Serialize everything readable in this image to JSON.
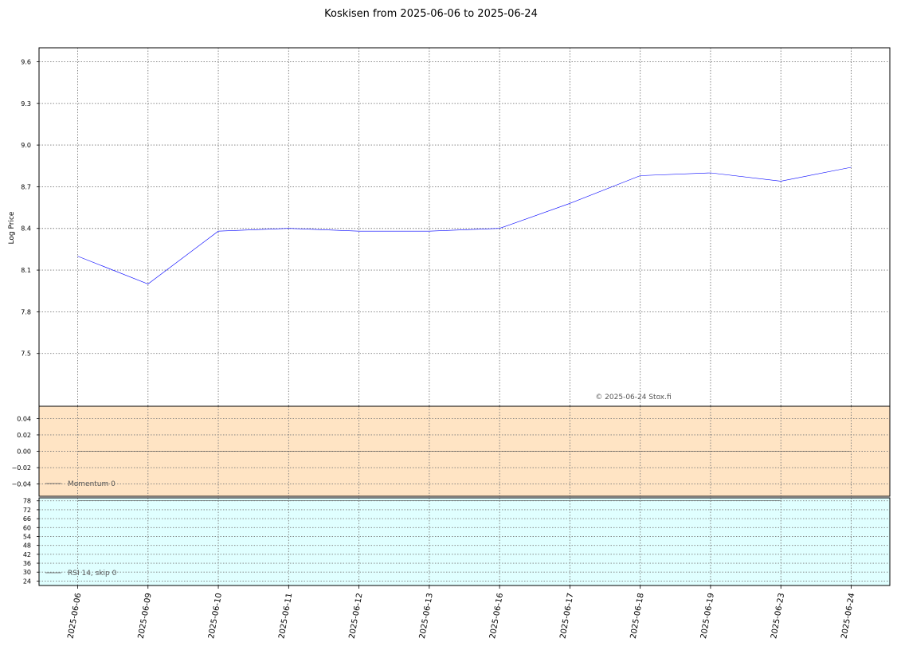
{
  "chart_data": {
    "type": "line",
    "title": "Koskisen from 2025-06-06 to 2025-06-24",
    "x": [
      "2025-06-06",
      "2025-06-09",
      "2025-06-10",
      "2025-06-11",
      "2025-06-12",
      "2025-06-13",
      "2025-06-16",
      "2025-06-17",
      "2025-06-18",
      "2025-06-19",
      "2025-06-23",
      "2025-06-24"
    ],
    "copyright": "© 2025-06-24 Stox.fi",
    "grid": true,
    "panels": [
      {
        "id": "price",
        "ylabel": "Log Price",
        "ylim": [
          7.12,
          9.7
        ],
        "yticks": [
          7.5,
          7.8,
          8.1,
          8.4,
          8.7,
          9.0,
          9.3,
          9.6
        ],
        "ytick_labels": [
          "7.5",
          "7.8",
          "8.1",
          "8.4",
          "8.7",
          "9.0",
          "9.3",
          "9.6"
        ],
        "background": "#ffffff",
        "series": [
          {
            "color": "#0000ff",
            "values": [
              8.2,
              8.0,
              8.38,
              8.4,
              8.38,
              8.38,
              8.4,
              8.58,
              8.78,
              8.8,
              8.74,
              8.84
            ]
          }
        ]
      },
      {
        "id": "momentum",
        "ylim": [
          -0.055,
          0.055
        ],
        "yticks": [
          -0.04,
          -0.02,
          0.0,
          0.02,
          0.04
        ],
        "ytick_labels": [
          "−0.04",
          "−0.02",
          "0.00",
          "0.02",
          "0.04"
        ],
        "background": "#ffe4c4",
        "legend": "Momentum 0",
        "legend_position": "lower-left",
        "series": [
          {
            "color": "#444444",
            "values": [
              0,
              0,
              0,
              0,
              0,
              0,
              0,
              0,
              0,
              0,
              0,
              0
            ]
          }
        ]
      },
      {
        "id": "rsi",
        "ylim": [
          21,
          80
        ],
        "yticks": [
          24,
          30,
          36,
          42,
          48,
          54,
          60,
          66,
          72,
          78
        ],
        "ytick_labels": [
          "24",
          "30",
          "36",
          "42",
          "48",
          "54",
          "60",
          "66",
          "72",
          "78"
        ],
        "background": "#e0ffff",
        "legend": "RSI 14, skip 0",
        "legend_position": "lower-left",
        "series": [
          {
            "color": "#444444",
            "values": [
              78,
              78,
              78,
              78,
              78,
              78,
              78,
              78,
              78,
              78,
              78,
              null
            ]
          }
        ]
      }
    ]
  }
}
